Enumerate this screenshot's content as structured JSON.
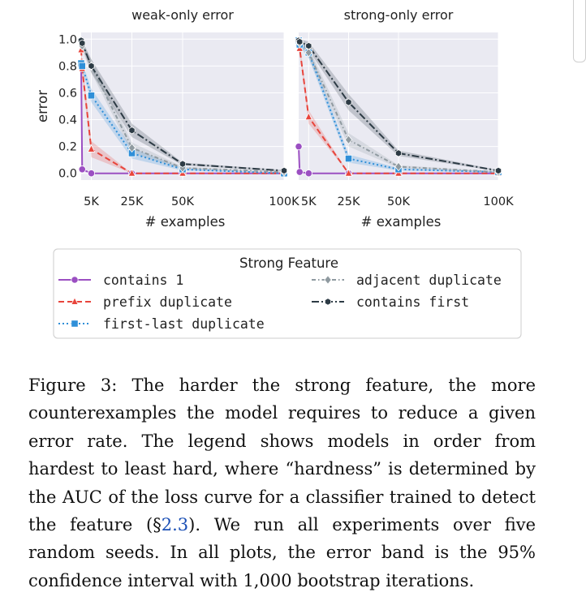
{
  "chart_data": [
    {
      "type": "line",
      "title": "weak-only error",
      "xlabel": "# examples",
      "ylabel": "error",
      "xlim": [
        0,
        100000
      ],
      "ylim": [
        -0.05,
        1.05
      ],
      "xticks": [
        5000,
        25000,
        50000,
        100000
      ],
      "xtick_labels": [
        "5K",
        "25K",
        "50K",
        "100K"
      ],
      "yticks": [
        0.0,
        0.2,
        0.4,
        0.6,
        0.8,
        1.0
      ],
      "ytick_labels": [
        "0.0",
        "0.2",
        "0.4",
        "0.6",
        "0.8",
        "1.0"
      ],
      "grid": true,
      "series": [
        {
          "key": "contains_1",
          "x": [
            0,
            500,
            5000,
            25000,
            50000,
            100000
          ],
          "y": [
            0.8,
            0.03,
            0.0,
            0.0,
            0.0,
            0.0
          ],
          "band": [
            0.0,
            0.0,
            0.0,
            0.0,
            0.0,
            0.0
          ]
        },
        {
          "key": "prefix_duplicate",
          "x": [
            0,
            500,
            5000,
            25000,
            50000,
            100000
          ],
          "y": [
            0.92,
            0.78,
            0.18,
            0.0,
            0.0,
            0.0
          ],
          "band": [
            0.04,
            0.05,
            0.06,
            0.0,
            0.0,
            0.0
          ]
        },
        {
          "key": "first_last_duplicate",
          "x": [
            0,
            500,
            5000,
            25000,
            50000,
            100000
          ],
          "y": [
            0.82,
            0.8,
            0.58,
            0.15,
            0.03,
            0.0
          ],
          "band": [
            0.03,
            0.03,
            0.05,
            0.04,
            0.01,
            0.0
          ]
        },
        {
          "key": "adjacent_duplicate",
          "x": [
            0,
            500,
            5000,
            25000,
            50000,
            100000
          ],
          "y": [
            0.98,
            0.95,
            0.8,
            0.19,
            0.04,
            0.01
          ],
          "band": [
            0.02,
            0.03,
            0.05,
            0.04,
            0.01,
            0.005
          ]
        },
        {
          "key": "contains_first",
          "x": [
            0,
            500,
            5000,
            25000,
            50000,
            100000
          ],
          "y": [
            0.99,
            0.97,
            0.8,
            0.32,
            0.07,
            0.02
          ],
          "band": [
            0.01,
            0.02,
            0.05,
            0.05,
            0.01,
            0.005
          ]
        }
      ]
    },
    {
      "type": "line",
      "title": "strong-only error",
      "xlabel": "# examples",
      "ylabel": "",
      "xlim": [
        0,
        100000
      ],
      "ylim": [
        -0.05,
        1.05
      ],
      "xticks": [
        5000,
        25000,
        50000,
        100000
      ],
      "xtick_labels": [
        "5K",
        "25K",
        "50K",
        "100K"
      ],
      "grid": true,
      "series": [
        {
          "key": "contains_1",
          "x": [
            0,
            500,
            5000,
            25000,
            50000,
            100000
          ],
          "y": [
            0.2,
            0.01,
            0.0,
            0.0,
            0.0,
            0.0
          ],
          "band": [
            0.0,
            0.0,
            0.0,
            0.0,
            0.0,
            0.0
          ]
        },
        {
          "key": "prefix_duplicate",
          "x": [
            0,
            500,
            5000,
            25000,
            50000,
            100000
          ],
          "y": [
            0.97,
            0.93,
            0.42,
            0.0,
            0.0,
            0.0
          ],
          "band": [
            0.02,
            0.03,
            0.05,
            0.0,
            0.0,
            0.0
          ]
        },
        {
          "key": "first_last_duplicate",
          "x": [
            0,
            500,
            5000,
            25000,
            50000,
            100000
          ],
          "y": [
            0.99,
            0.96,
            0.9,
            0.11,
            0.03,
            0.01
          ],
          "band": [
            0.01,
            0.02,
            0.04,
            0.03,
            0.01,
            0.005
          ]
        },
        {
          "key": "adjacent_duplicate",
          "x": [
            0,
            500,
            5000,
            25000,
            50000,
            100000
          ],
          "y": [
            0.99,
            0.97,
            0.9,
            0.25,
            0.05,
            0.01
          ],
          "band": [
            0.01,
            0.02,
            0.04,
            0.05,
            0.01,
            0.005
          ]
        },
        {
          "key": "contains_first",
          "x": [
            0,
            500,
            5000,
            25000,
            50000,
            100000
          ],
          "y": [
            0.99,
            0.98,
            0.95,
            0.53,
            0.15,
            0.02
          ],
          "band": [
            0.01,
            0.02,
            0.03,
            0.06,
            0.02,
            0.005
          ]
        }
      ]
    }
  ],
  "legend": {
    "title": "Strong Feature",
    "entries": [
      {
        "key": "contains_1",
        "label": "contains 1"
      },
      {
        "key": "prefix_duplicate",
        "label": "prefix duplicate"
      },
      {
        "key": "first_last_duplicate",
        "label": "first-last duplicate"
      },
      {
        "key": "adjacent_duplicate",
        "label": "adjacent duplicate"
      },
      {
        "key": "contains_first",
        "label": "contains first"
      }
    ]
  },
  "styles": {
    "contains_1": {
      "color": "#9b4fc2",
      "marker": "circle",
      "dash": ""
    },
    "prefix_duplicate": {
      "color": "#e8453c",
      "marker": "triangle",
      "dash": "7,4"
    },
    "first_last_duplicate": {
      "color": "#2f8fd8",
      "marker": "square",
      "dash": "2,3"
    },
    "adjacent_duplicate": {
      "color": "#8f9aa0",
      "marker": "diamond",
      "dash": "5,3,1.5,3"
    },
    "contains_first": {
      "color": "#2d3b45",
      "marker": "hexagon",
      "dash": "9,3,2,3"
    }
  },
  "caption": {
    "label": "Figure 3:",
    "before_ref": " The harder the strong feature, the more counterexamples the model requires to reduce a given error rate. The legend shows models in order from hardest to least hard, where “hardness” is determined by the AUC of the loss curve for a classifier trained to detect the feature (§",
    "ref": "2.3",
    "after_ref": ").  We run all experiments over five random seeds. In all plots, the error band is the 95% confidence interval with 1,000 bootstrap iterations."
  }
}
